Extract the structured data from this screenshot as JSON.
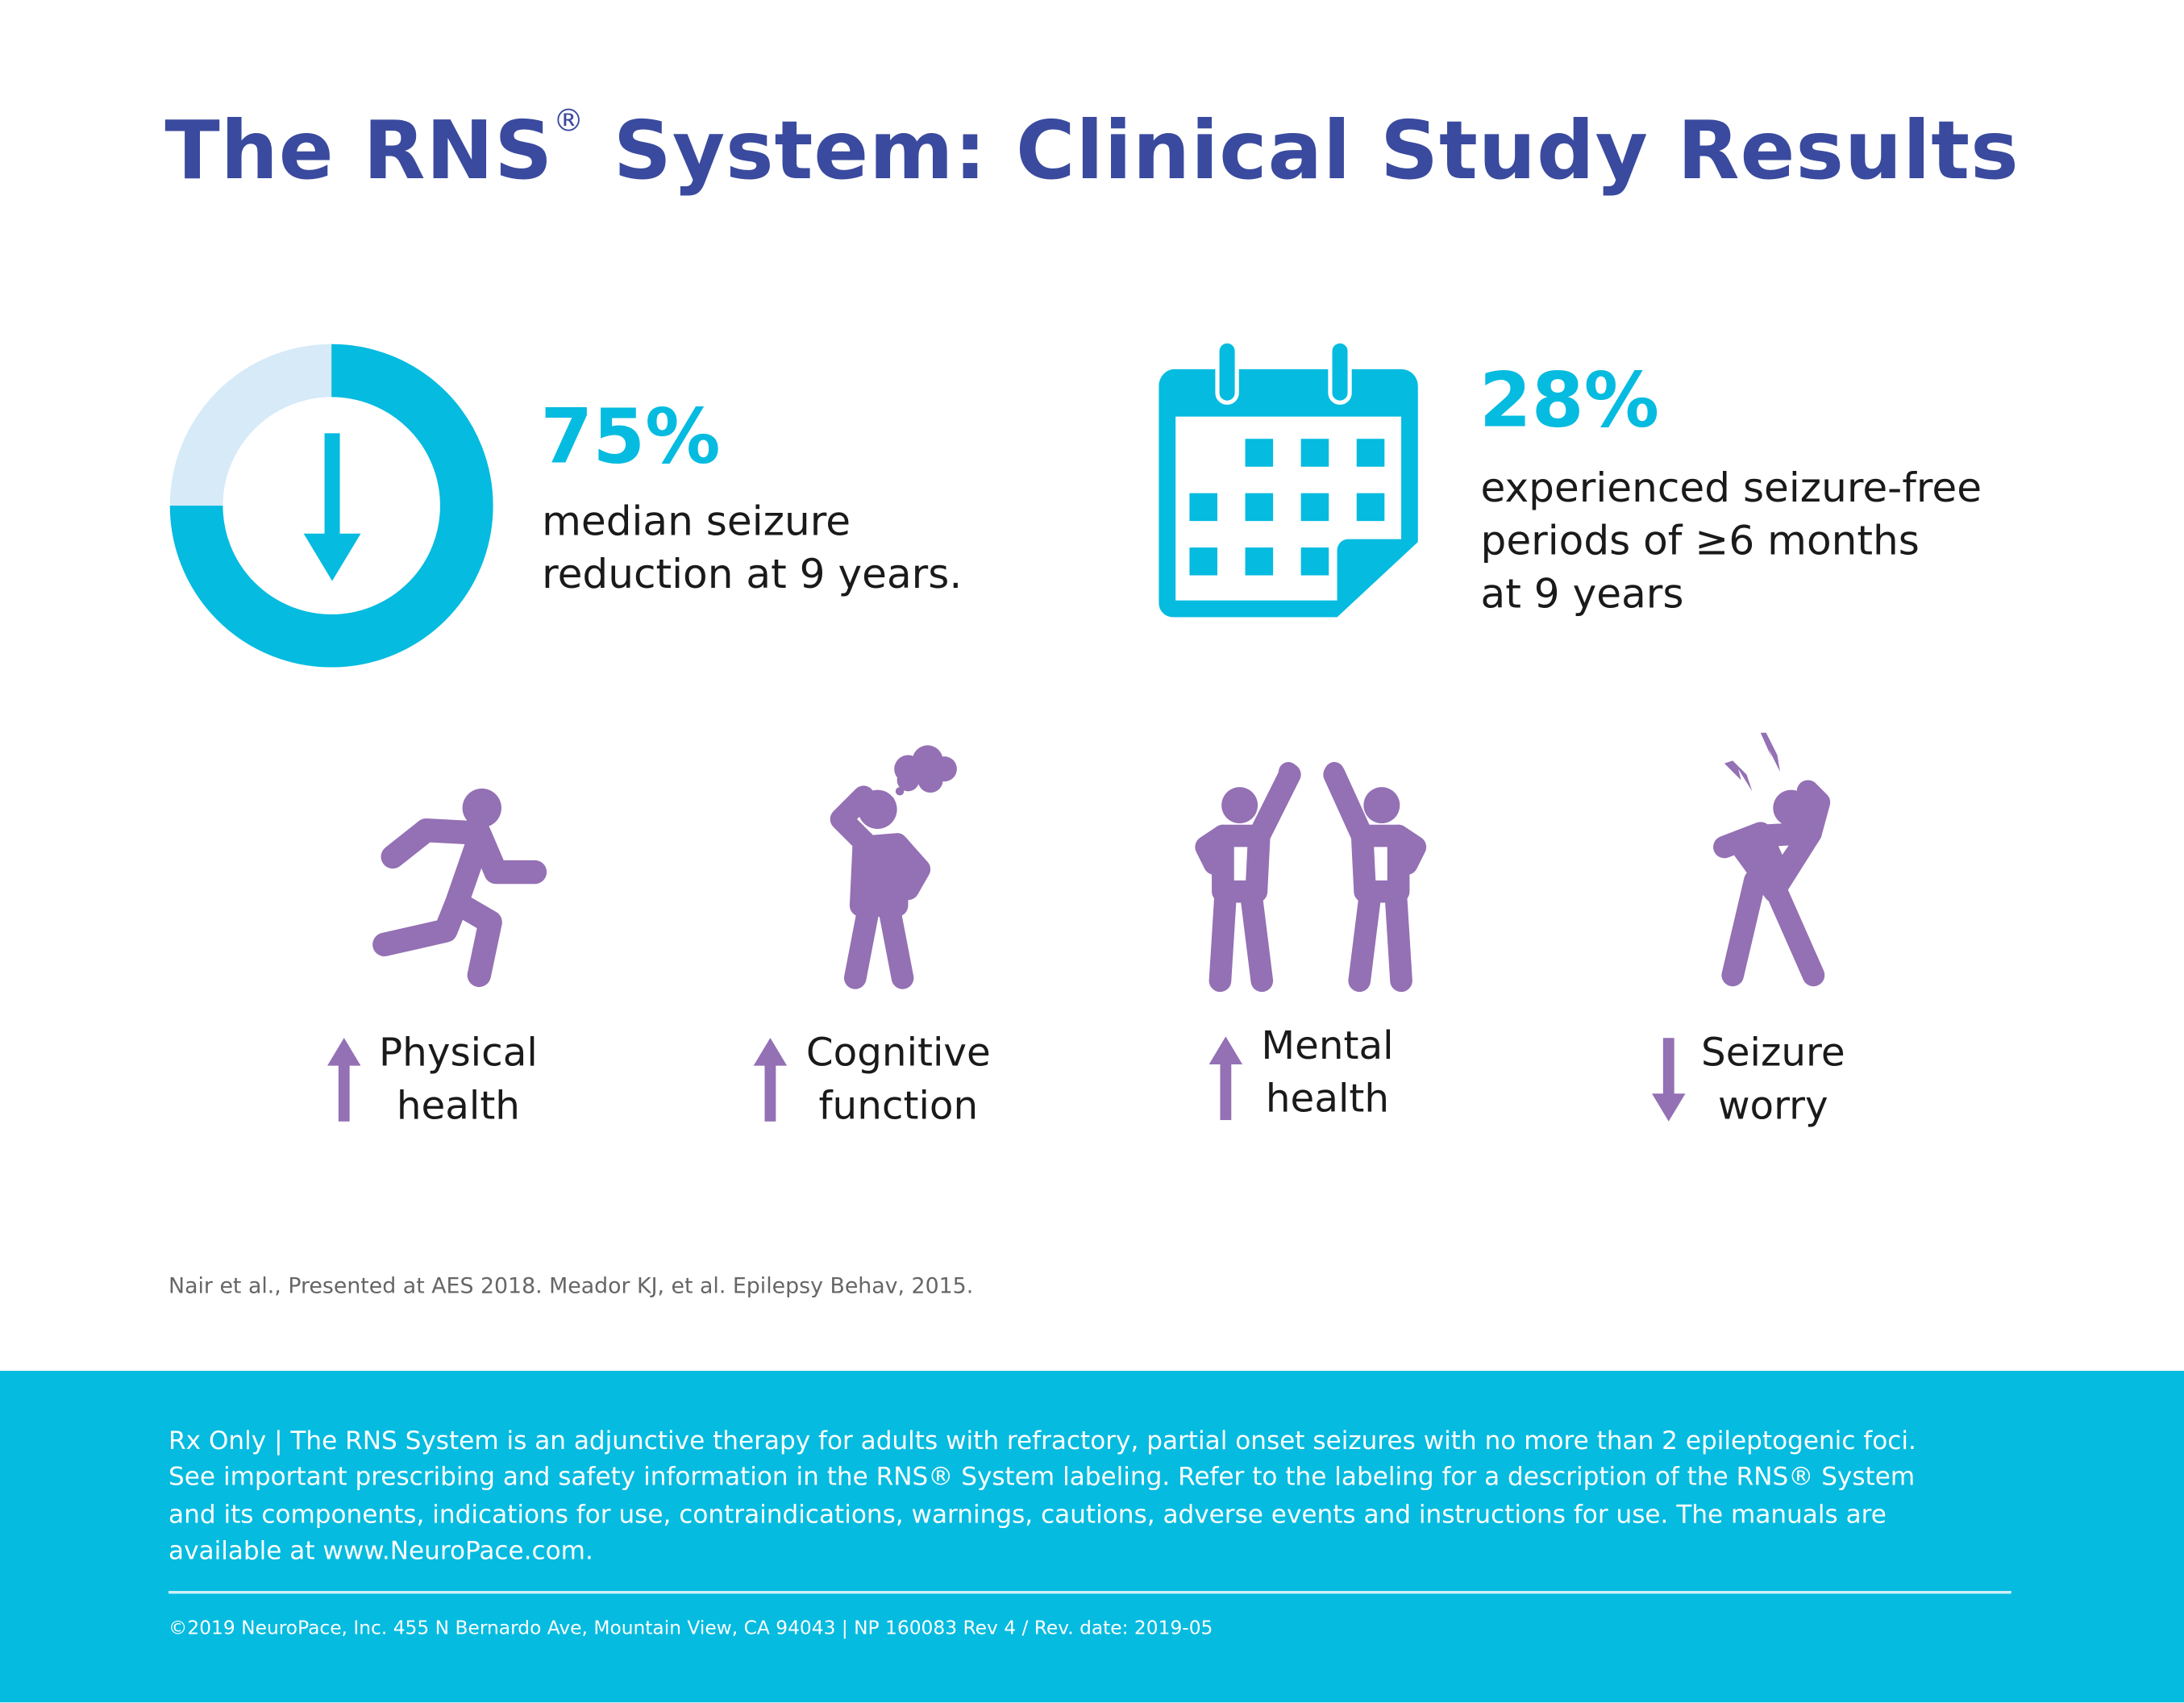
{
  "title": {
    "text": "The RNS",
    "reg": "®",
    "rest": " System: Clinical Study Results"
  },
  "colors": {
    "title": "#3a4a9e",
    "accent": "#05bbe0",
    "donut_bg": "#d6eaf8",
    "figure": "#9470b4"
  },
  "stat1": {
    "value": "75%",
    "fraction": 0.75,
    "line1": "median seizure",
    "line2": "reduction at 9 years.",
    "icon": "down-arrow-donut"
  },
  "stat2": {
    "value": "28%",
    "line1": "experienced seizure-free",
    "line2": "periods of ≥6 months",
    "line3": "at 9 years",
    "icon": "calendar-icon"
  },
  "outcomes": [
    {
      "line1": "Physical",
      "line2": "health",
      "direction": "up",
      "icon": "running-person"
    },
    {
      "line1": "Cognitive",
      "line2": "function",
      "direction": "up",
      "icon": "thinking-person"
    },
    {
      "line1": "Mental",
      "line2": "health",
      "direction": "up",
      "icon": "high-five-people"
    },
    {
      "line1": "Seizure",
      "line2": "worry",
      "direction": "down",
      "icon": "worried-person"
    }
  ],
  "citation": "Nair et al., Presented at AES 2018.  Meador KJ, et al. Epilepsy Behav, 2015.",
  "footer": {
    "legal": [
      "Rx Only | The RNS System is an adjunctive therapy for adults with refractory, partial onset seizures with no more than 2 epileptogenic foci.",
      "See important prescribing and safety information in the RNS® System labeling. Refer to the labeling for a description of the RNS® System",
      "and its components, indications for use, contraindications, warnings, cautions, adverse events and instructions for use. The manuals are",
      "available at www.NeuroPace.com."
    ],
    "copyright": "©2019 NeuroPace, Inc. 455 N Bernardo Ave, Mountain View, CA 94043 | NP 160083 Rev 4 / Rev. date: 2019-05"
  }
}
